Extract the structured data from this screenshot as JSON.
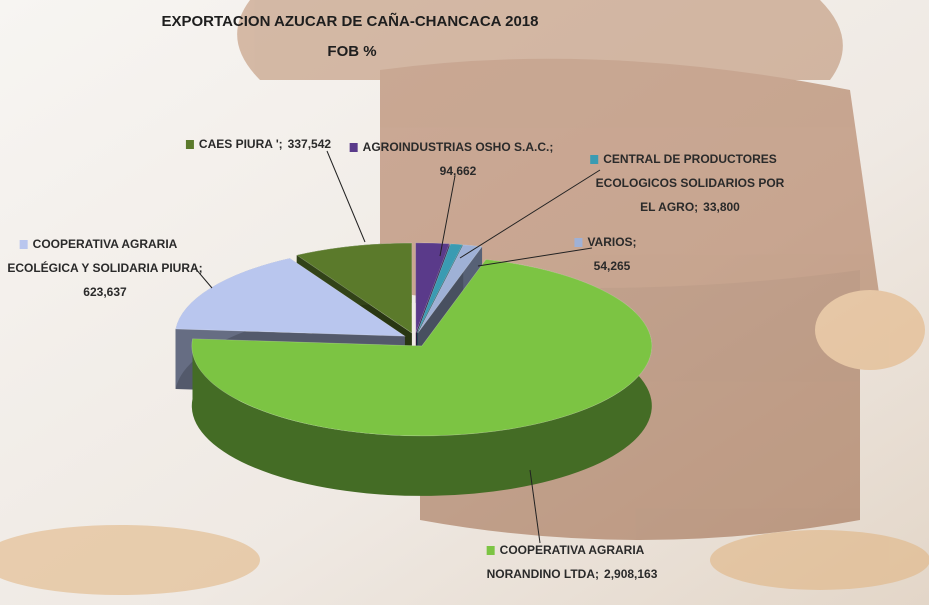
{
  "chart_data": {
    "type": "pie3d",
    "title": "EXPORTACION  AZUCAR DE CAÑA-CHANCACA 2018",
    "subtitle": "FOB  %",
    "categories": [
      "COOPERATIVA AGRARIA NORANDINO LTDA;",
      "COOPERATIVA AGRARIA ECOLÉGICA Y SOLIDARIA PIURA;",
      "CAES PIURA ';",
      "AGROINDUSTRIAS OSHO S.A.C.;",
      "CENTRAL DE PRODUCTORES ECOLOGICOS SOLIDARIOS POR EL AGRO;",
      "VARIOS;"
    ],
    "values": [
      2908163,
      623637,
      337542,
      94662,
      33800,
      54265
    ],
    "value_labels": [
      "2,908,163",
      "623,637",
      "337,542",
      "94,662",
      "33,800",
      "54,265"
    ],
    "colors": [
      "#7cc443",
      "#b9c6ee",
      "#5b7a2b",
      "#5a3a8a",
      "#3a9bb2",
      "#9fb1d6"
    ]
  }
}
